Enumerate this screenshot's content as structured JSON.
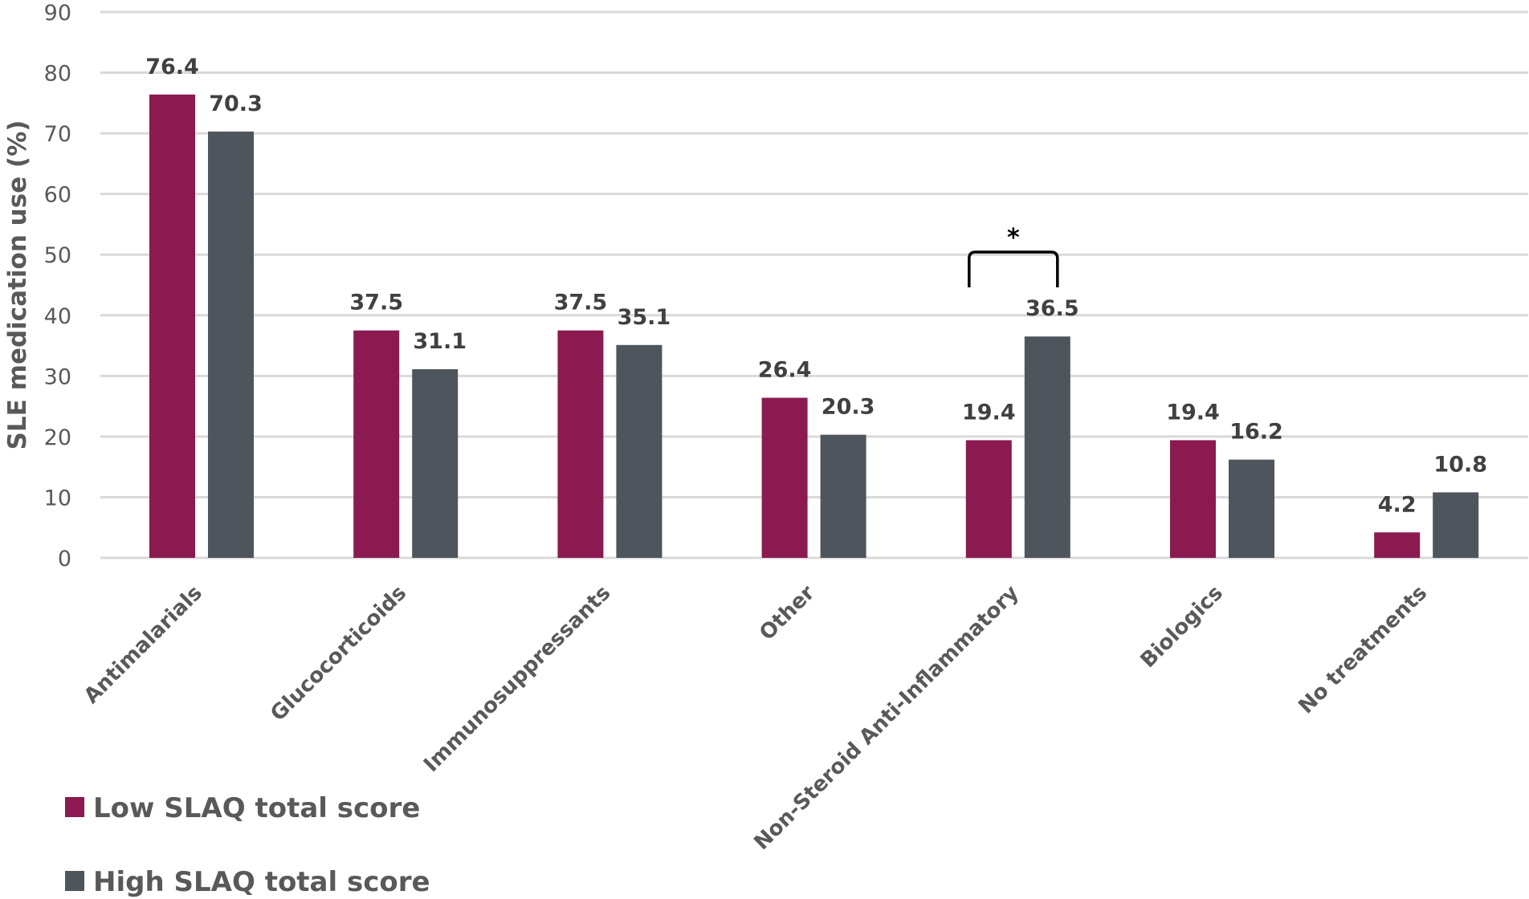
{
  "chart_data": {
    "type": "bar",
    "title": "",
    "xlabel": "",
    "ylabel": "SLE medication use (%)",
    "ylim": [
      0,
      90
    ],
    "yticks": [
      0,
      10,
      20,
      30,
      40,
      50,
      60,
      70,
      80,
      90
    ],
    "grid": true,
    "legend_position": "bottom-left",
    "categories": [
      "Antimalarials",
      "Glucocorticoids",
      "Immunosuppressants",
      "Other",
      "Non-Steroid Anti-Inflammatory",
      "Biologics",
      "No treatments"
    ],
    "series": [
      {
        "name": "Low SLAQ total score",
        "color": "#8B1A50",
        "values": [
          76.4,
          37.5,
          37.5,
          26.4,
          19.4,
          19.4,
          4.2
        ],
        "labels": [
          "76.4",
          "37.5",
          "37.5",
          "26.4",
          "19.4",
          "19.4",
          "4.2"
        ]
      },
      {
        "name": "High SLAQ total score",
        "color": "#4E555C",
        "values": [
          70.3,
          31.1,
          35.1,
          20.3,
          36.5,
          16.2,
          10.8
        ],
        "labels": [
          "70.3",
          "31.1",
          "35.1",
          "20.3",
          "36.5",
          "16.2",
          "10.8"
        ]
      }
    ],
    "annotations": [
      {
        "type": "significance-bracket",
        "category": "Non-Steroid Anti-Inflammatory",
        "text": "*"
      }
    ]
  }
}
